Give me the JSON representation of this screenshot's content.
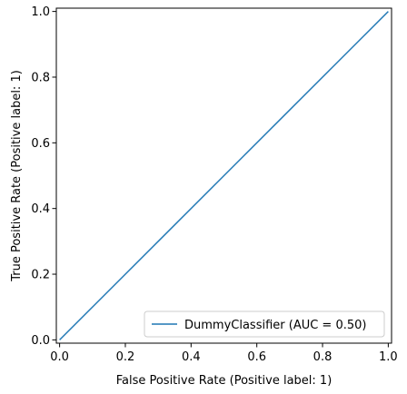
{
  "chart_data": {
    "type": "line",
    "xlabel": "False Positive Rate (Positive label: 1)",
    "ylabel": "True Positive Rate (Positive label: 1)",
    "xlim": [
      -0.01,
      1.01
    ],
    "ylim": [
      -0.01,
      1.01
    ],
    "xticks": [
      0.0,
      0.2,
      0.4,
      0.6,
      0.8,
      1.0
    ],
    "yticks": [
      0.0,
      0.2,
      0.4,
      0.6,
      0.8,
      1.0
    ],
    "xtick_labels": [
      "0.0",
      "0.2",
      "0.4",
      "0.6",
      "0.8",
      "1.0"
    ],
    "ytick_labels": [
      "0.0",
      "0.2",
      "0.4",
      "0.6",
      "0.8",
      "1.0"
    ],
    "grid": false,
    "legend_position": "lower-right",
    "series": [
      {
        "name": "DummyClassifier (AUC = 0.50)",
        "color": "#1f77b4",
        "x": [
          0.0,
          1.0
        ],
        "y": [
          0.0,
          1.0
        ]
      }
    ]
  }
}
